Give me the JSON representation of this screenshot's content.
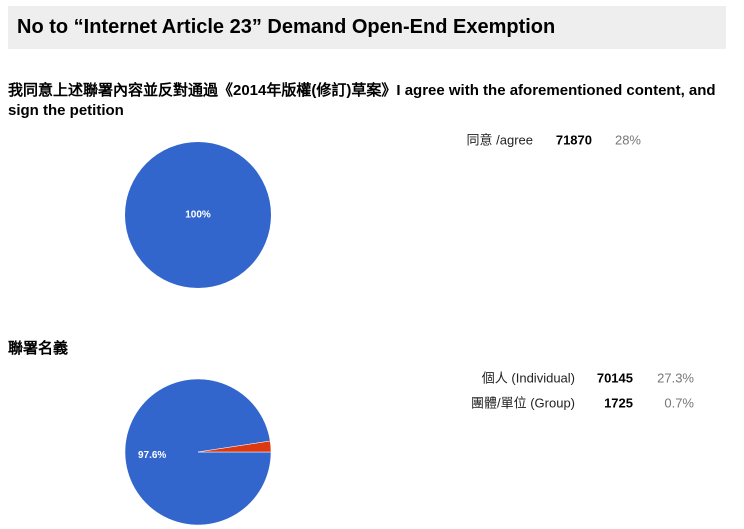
{
  "header": {
    "title": "No to “Internet Article 23” Demand Open-End Exemption"
  },
  "chart_data": [
    {
      "type": "pie",
      "title": "我同意上述聯署內容並反對通過《2014年版權(修訂)草案》I agree with the aforementioned content, and sign the petition",
      "categories": [
        "同意 /agree"
      ],
      "values": [
        71870
      ],
      "colors": [
        "#3366cc"
      ],
      "percents": [
        28
      ],
      "percent_labels": [
        "28%"
      ],
      "slice_labels": [
        "100%"
      ]
    },
    {
      "type": "pie",
      "title": "聯署名義",
      "categories": [
        "個人 (Individual)",
        "團體/單位 (Group)"
      ],
      "values": [
        70145,
        1725
      ],
      "colors": [
        "#3366cc",
        "#dc3912"
      ],
      "percents": [
        27.3,
        0.7
      ],
      "percent_labels": [
        "27.3%",
        "0.7%"
      ],
      "slice_labels": [
        "97.6%",
        null
      ]
    }
  ]
}
